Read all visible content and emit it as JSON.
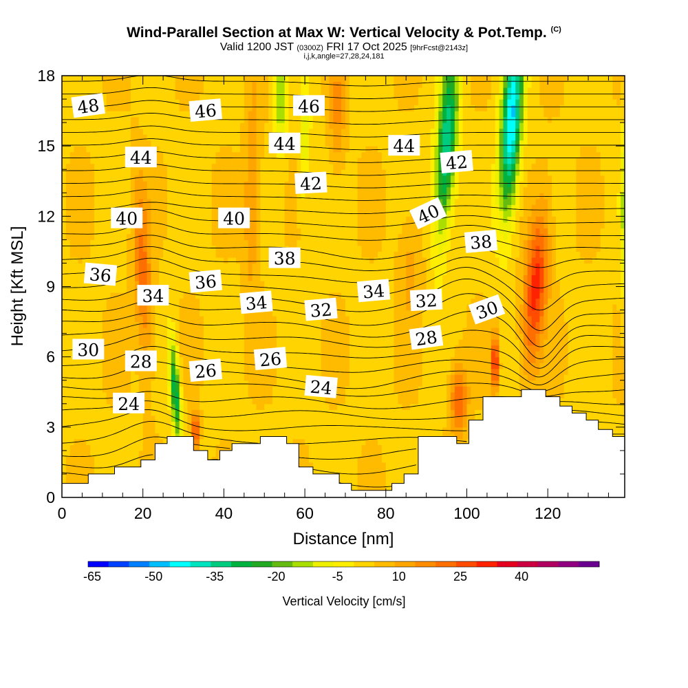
{
  "header": {
    "title": "Wind-Parallel Section at Max W: Vertical Velocity & Pot.Temp.",
    "title_mark": "(C)",
    "valid_prefix": "Valid 1200 JST",
    "valid_utc": "(0300Z)",
    "valid_date": "FRI 17 Oct 2025",
    "forecast_info": "[9hrFcst@2143z]",
    "grid_info": "i,j,k,angle=27,28,24,181"
  },
  "chart_data": {
    "type": "heatmap",
    "xlabel": "Distance [nm]",
    "ylabel": "Height [Kft MSL]",
    "xlim": [
      0,
      139
    ],
    "ylim": [
      0,
      18
    ],
    "x_ticks": [
      0,
      20,
      40,
      60,
      80,
      100,
      120
    ],
    "y_ticks": [
      0,
      3,
      6,
      9,
      12,
      15,
      18
    ],
    "colorbar": {
      "title": "Vertical Velocity [cm/s]",
      "min": -65,
      "max": 50,
      "step": 5,
      "tick_values": [
        "-65",
        "-50",
        "-35",
        "-20",
        "-5",
        "10",
        "25",
        "40"
      ],
      "colors": [
        "#0000ff",
        "#0040ff",
        "#0080ff",
        "#00bfff",
        "#00ffff",
        "#00e5bf",
        "#00cc80",
        "#00b240",
        "#22aa22",
        "#66bb11",
        "#aadd00",
        "#eef000",
        "#ffee00",
        "#ffd400",
        "#ffbb00",
        "#ffa500",
        "#ff8c00",
        "#ff6f00",
        "#ff4c00",
        "#ff2200",
        "#e60020",
        "#cc0040",
        "#b00060",
        "#900080",
        "#6a0090"
      ]
    },
    "terrain": [
      [
        0,
        0.6
      ],
      [
        6.5,
        0.6
      ],
      [
        6.5,
        1.0
      ],
      [
        13,
        1.0
      ],
      [
        13,
        1.3
      ],
      [
        19.5,
        1.3
      ],
      [
        19.5,
        1.6
      ],
      [
        23,
        1.6
      ],
      [
        23,
        2.3
      ],
      [
        26,
        2.3
      ],
      [
        26,
        2.6
      ],
      [
        32.5,
        2.6
      ],
      [
        32.5,
        2.0
      ],
      [
        36,
        2.0
      ],
      [
        36,
        1.6
      ],
      [
        39,
        1.6
      ],
      [
        39,
        2.0
      ],
      [
        42,
        2.0
      ],
      [
        42,
        2.3
      ],
      [
        49,
        2.3
      ],
      [
        49,
        2.6
      ],
      [
        55.5,
        2.6
      ],
      [
        55.5,
        2.3
      ],
      [
        58.5,
        2.3
      ],
      [
        58.5,
        1.3
      ],
      [
        62,
        1.3
      ],
      [
        62,
        1.0
      ],
      [
        68.5,
        1.0
      ],
      [
        68.5,
        0.6
      ],
      [
        71.5,
        0.6
      ],
      [
        71.5,
        0.3
      ],
      [
        81.5,
        0.3
      ],
      [
        81.5,
        0.6
      ],
      [
        84.5,
        0.6
      ],
      [
        84.5,
        1.0
      ],
      [
        88,
        1.0
      ],
      [
        88,
        2.6
      ],
      [
        97.5,
        2.6
      ],
      [
        97.5,
        2.3
      ],
      [
        100.5,
        2.3
      ],
      [
        100.5,
        3.3
      ],
      [
        104,
        3.3
      ],
      [
        104,
        4.3
      ],
      [
        113.5,
        4.3
      ],
      [
        113.5,
        4.6
      ],
      [
        119.5,
        4.6
      ],
      [
        119.5,
        4.3
      ],
      [
        123,
        4.3
      ],
      [
        123,
        3.9
      ],
      [
        126,
        3.9
      ],
      [
        126,
        3.6
      ],
      [
        129.5,
        3.6
      ],
      [
        129.5,
        3.3
      ],
      [
        132.5,
        3.3
      ],
      [
        132.5,
        2.9
      ],
      [
        136,
        2.9
      ],
      [
        136,
        2.6
      ],
      [
        139,
        2.6
      ]
    ],
    "w_features": [
      {
        "x": 20,
        "y": 9.5,
        "sx": 2.2,
        "sy": 4.0,
        "tilt": -0.25,
        "amp": 18
      },
      {
        "x": 28,
        "y": 4.5,
        "sx": 1.2,
        "sy": 2.2,
        "tilt": -0.35,
        "amp": -35
      },
      {
        "x": 33,
        "y": 2.8,
        "sx": 0.9,
        "sy": 0.9,
        "tilt": 0,
        "amp": 25
      },
      {
        "x": 47,
        "y": 13.0,
        "sx": 2.0,
        "sy": 4.5,
        "tilt": 0.1,
        "amp": 12
      },
      {
        "x": 54,
        "y": 17.0,
        "sx": 1.5,
        "sy": 2.0,
        "tilt": 0.0,
        "amp": -20
      },
      {
        "x": 60,
        "y": 15.0,
        "sx": 1.4,
        "sy": 3.0,
        "tilt": 0.1,
        "amp": -12
      },
      {
        "x": 68,
        "y": 16.5,
        "sx": 2.0,
        "sy": 2.5,
        "tilt": 0.0,
        "amp": 12
      },
      {
        "x": 95,
        "y": 15.0,
        "sx": 2.5,
        "sy": 4.0,
        "tilt": 0.35,
        "amp": -40
      },
      {
        "x": 98,
        "y": 4.2,
        "sx": 2.2,
        "sy": 1.5,
        "tilt": 0,
        "amp": 20
      },
      {
        "x": 107,
        "y": 5.8,
        "sx": 0.9,
        "sy": 1.2,
        "tilt": 0,
        "amp": 30
      },
      {
        "x": 111,
        "y": 16.0,
        "sx": 2.5,
        "sy": 4.0,
        "tilt": 0.3,
        "amp": -50
      },
      {
        "x": 117,
        "y": 9.0,
        "sx": 2.8,
        "sy": 3.5,
        "tilt": 0.45,
        "amp": 28
      },
      {
        "x": 86,
        "y": 10.0,
        "sx": 3.0,
        "sy": 2.5,
        "tilt": 0,
        "amp": 8
      },
      {
        "x": 139,
        "y": 12.0,
        "sx": 1.0,
        "sy": 4.0,
        "tilt": 0,
        "amp": -15
      }
    ],
    "theta_min": 20,
    "theta_max": 52,
    "theta_step": 1,
    "contour_labels": [
      {
        "text": "48",
        "x": 6.5,
        "y": 16.7,
        "rot": -8
      },
      {
        "text": "46",
        "x": 35.5,
        "y": 16.5,
        "rot": -5
      },
      {
        "text": "46",
        "x": 61,
        "y": 16.7,
        "rot": 0
      },
      {
        "text": "44",
        "x": 19.5,
        "y": 14.5,
        "rot": 0
      },
      {
        "text": "44",
        "x": 55,
        "y": 15.1,
        "rot": 0
      },
      {
        "text": "44",
        "x": 84.5,
        "y": 15.0,
        "rot": 0
      },
      {
        "text": "42",
        "x": 61.5,
        "y": 13.4,
        "rot": -3
      },
      {
        "text": "42",
        "x": 97.5,
        "y": 14.3,
        "rot": -5
      },
      {
        "text": "40",
        "x": 16,
        "y": 11.9,
        "rot": 0
      },
      {
        "text": "40",
        "x": 42.5,
        "y": 11.9,
        "rot": 0
      },
      {
        "text": "40",
        "x": 90.5,
        "y": 12.1,
        "rot": -25
      },
      {
        "text": "38",
        "x": 55,
        "y": 10.2,
        "rot": 0
      },
      {
        "text": "38",
        "x": 103.5,
        "y": 10.9,
        "rot": -5
      },
      {
        "text": "36",
        "x": 9.5,
        "y": 9.5,
        "rot": 5
      },
      {
        "text": "36",
        "x": 35.5,
        "y": 9.2,
        "rot": -5
      },
      {
        "text": "34",
        "x": 22.5,
        "y": 8.6,
        "rot": 0
      },
      {
        "text": "34",
        "x": 48,
        "y": 8.3,
        "rot": -5
      },
      {
        "text": "34",
        "x": 77,
        "y": 8.8,
        "rot": -5
      },
      {
        "text": "32",
        "x": 64,
        "y": 8.0,
        "rot": -5
      },
      {
        "text": "32",
        "x": 90,
        "y": 8.4,
        "rot": -3
      },
      {
        "text": "30",
        "x": 6.5,
        "y": 6.3,
        "rot": 0
      },
      {
        "text": "30",
        "x": 105,
        "y": 8.0,
        "rot": -20
      },
      {
        "text": "28",
        "x": 19.5,
        "y": 5.8,
        "rot": 0
      },
      {
        "text": "28",
        "x": 90,
        "y": 6.8,
        "rot": -8
      },
      {
        "text": "26",
        "x": 35.5,
        "y": 5.4,
        "rot": -5
      },
      {
        "text": "26",
        "x": 51.5,
        "y": 5.9,
        "rot": -5
      },
      {
        "text": "24",
        "x": 16.5,
        "y": 4.0,
        "rot": 0
      },
      {
        "text": "24",
        "x": 64,
        "y": 4.7,
        "rot": 5
      }
    ]
  }
}
